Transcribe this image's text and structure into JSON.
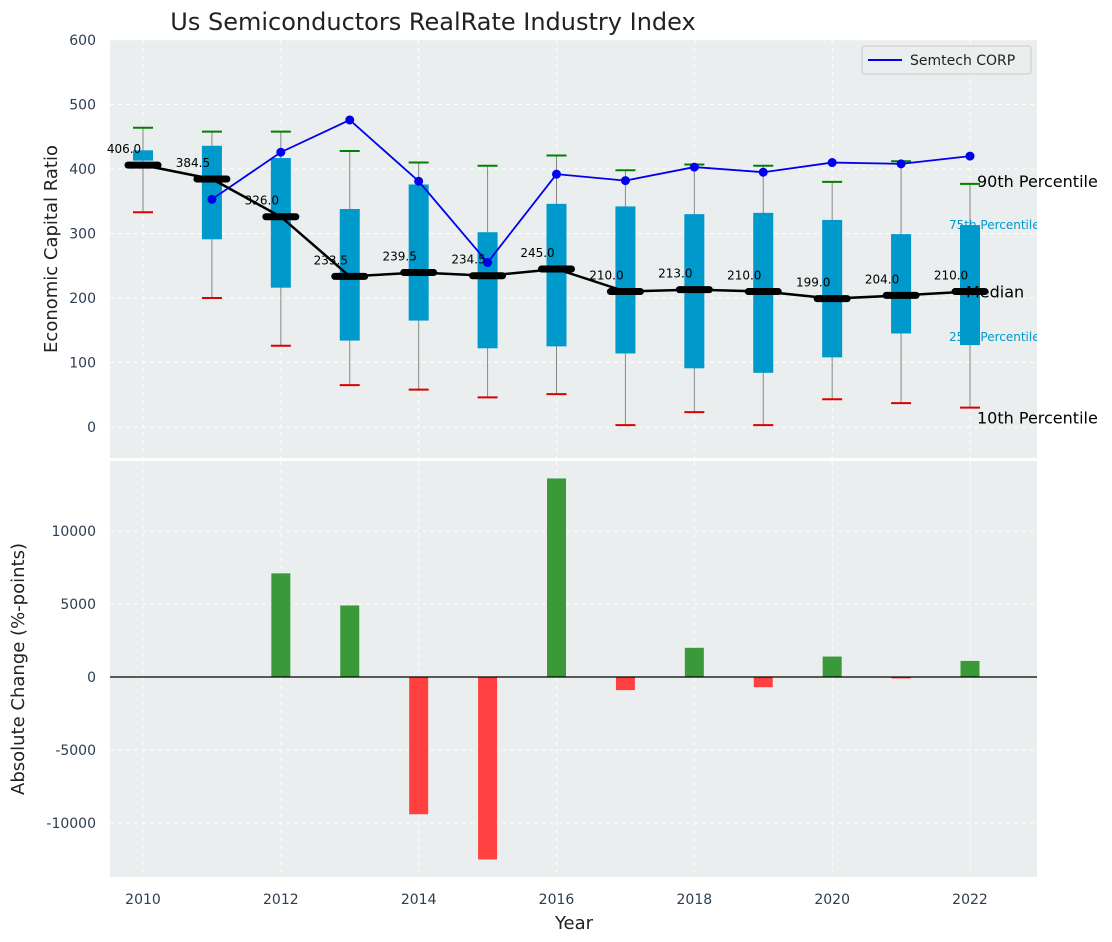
{
  "chart_data": [
    {
      "type": "box",
      "title": "Us Semiconductors RealRate Industry Index",
      "xlabel": "",
      "ylabel": "Economic Capital Ratio",
      "ylim": [
        -50,
        600
      ],
      "yticks": [
        0,
        100,
        200,
        300,
        400,
        500,
        600
      ],
      "years": [
        2010,
        2011,
        2012,
        2013,
        2014,
        2015,
        2016,
        2017,
        2018,
        2019,
        2020,
        2021,
        2022
      ],
      "p10": [
        333,
        200,
        126,
        65,
        58,
        46,
        51,
        3,
        23,
        3,
        43,
        37,
        30
      ],
      "p25": [
        413,
        291,
        216,
        134,
        165,
        122,
        125,
        114,
        91,
        84,
        108,
        145,
        127
      ],
      "median": [
        406.0,
        384.5,
        326.0,
        233.5,
        239.5,
        234.5,
        245.0,
        210.0,
        213.0,
        210.0,
        199.0,
        204.0,
        210.0
      ],
      "median_labels": [
        "406.0",
        "384.5",
        "326.0",
        "233.5",
        "239.5",
        "234.5",
        "245.0",
        "210.0",
        "213.0",
        "210.0",
        "199.0",
        "204.0",
        "210.0"
      ],
      "p75": [
        429,
        436,
        417,
        338,
        376,
        302,
        346,
        342,
        330,
        332,
        321,
        299,
        313
      ],
      "p90": [
        464,
        458,
        458,
        428,
        410,
        405,
        421,
        398,
        407,
        405,
        380,
        412,
        377
      ],
      "company_years": [
        2011,
        2012,
        2013,
        2014,
        2015,
        2016,
        2017,
        2018,
        2019,
        2020,
        2021,
        2022
      ],
      "company": [
        353,
        426,
        476,
        381,
        255,
        392,
        382,
        403,
        395,
        410,
        408,
        420
      ],
      "legend": [
        {
          "label": "Semtech CORP",
          "color": "#0000ee"
        }
      ],
      "right_labels": {
        "p90": "90th Percentile",
        "p75": "75th Percentile",
        "median": "Median",
        "p25": "25th Percentile",
        "p10": "10th Percentile"
      },
      "colors": {
        "box": "#0099cc",
        "median": "#000000",
        "company": "#0000ee",
        "p90_cap": "#008000",
        "p10_cap": "#dd0000",
        "whisker": "#888888",
        "plot_bg": "#eaeeee"
      }
    },
    {
      "type": "bar",
      "title": "",
      "xlabel": "Year",
      "ylabel": "Absolute Change (%-points)",
      "ylim": [
        -13900,
        14700
      ],
      "yticks": [
        -10000,
        -5000,
        0,
        5000,
        10000
      ],
      "xticks": [
        2010,
        2012,
        2014,
        2016,
        2018,
        2020,
        2022
      ],
      "years": [
        2012,
        2013,
        2014,
        2015,
        2016,
        2017,
        2018,
        2019,
        2020,
        2021,
        2022
      ],
      "values": [
        7100,
        4900,
        -9400,
        -12500,
        13600,
        -900,
        2000,
        -700,
        1400,
        -100,
        1100
      ],
      "colors": {
        "positive": "#3a9a3a",
        "negative": "#ff4040"
      }
    }
  ]
}
